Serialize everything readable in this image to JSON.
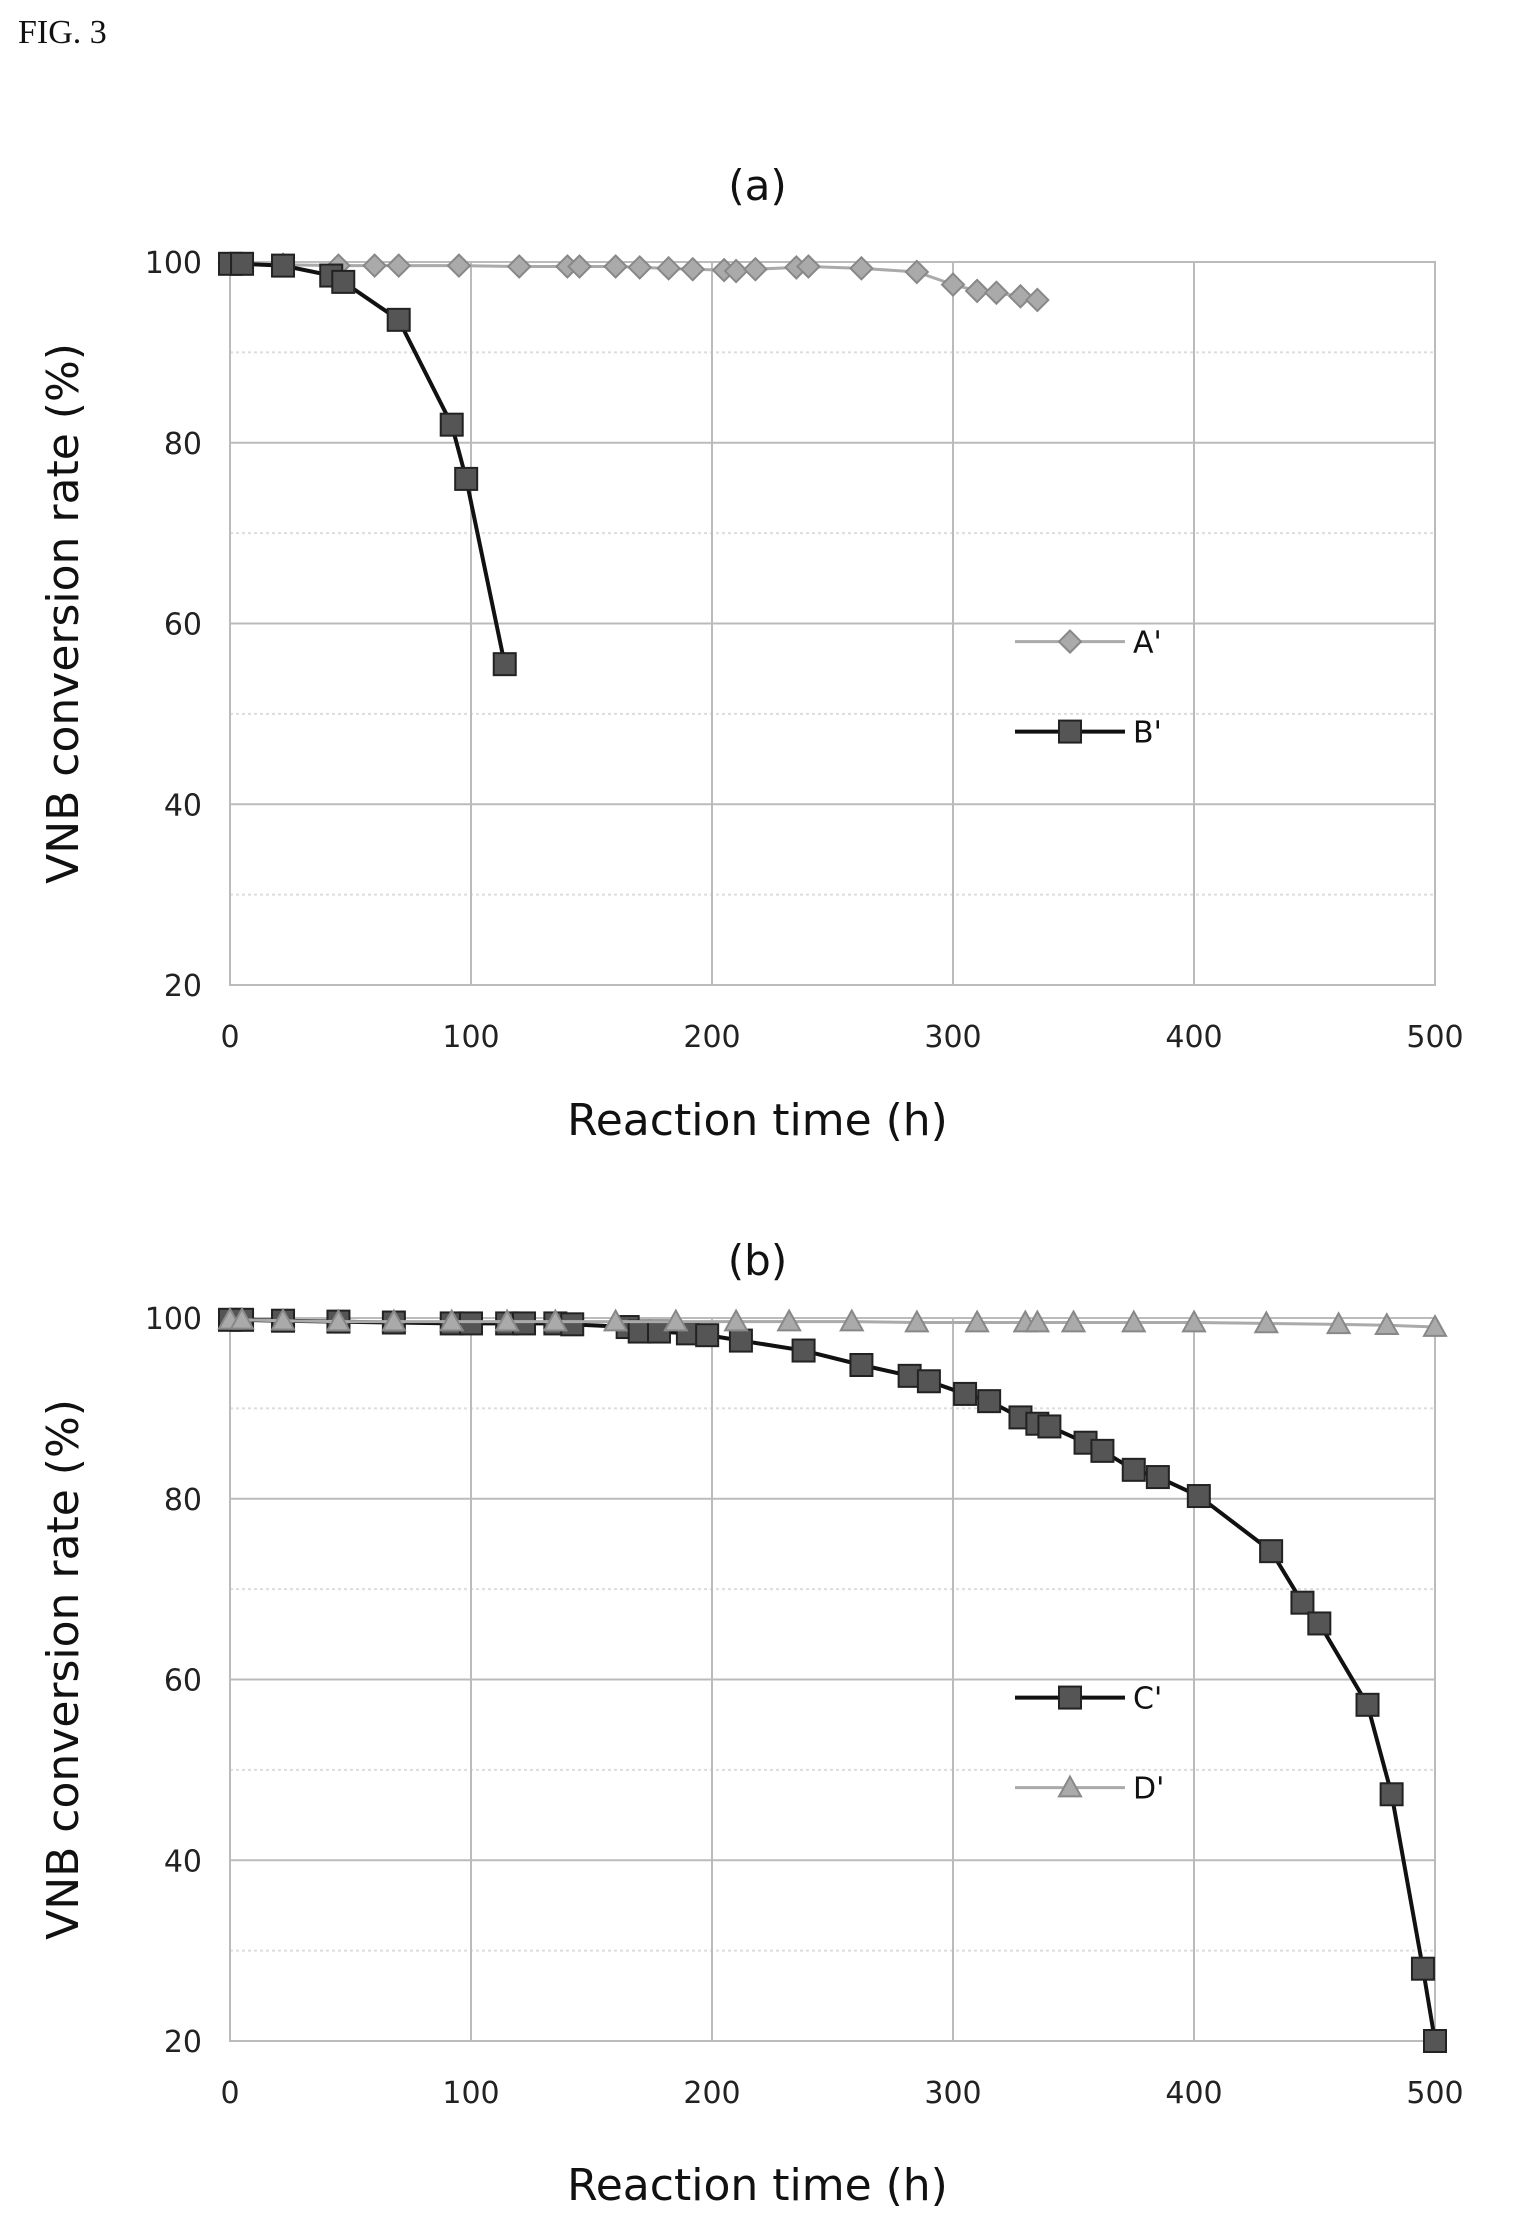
{
  "figure_label": "FIG. 3",
  "chart_data": [
    {
      "type": "line",
      "title": "(a)",
      "xlabel": "Reaction time (h)",
      "ylabel": "VNB conversion rate (%)",
      "xlim": [
        0,
        500
      ],
      "ylim": [
        20,
        100
      ],
      "xticks": [
        0,
        100,
        200,
        300,
        400,
        500
      ],
      "yticks": [
        20,
        40,
        60,
        80,
        100
      ],
      "grid": true,
      "legend_position": "center-right",
      "series": [
        {
          "name": "A'",
          "marker": "diamond",
          "color": "#aaaaaa",
          "x": [
            0,
            5,
            22,
            45,
            60,
            70,
            95,
            120,
            140,
            145,
            160,
            170,
            182,
            192,
            205,
            210,
            218,
            235,
            240,
            262,
            285,
            300,
            310,
            318,
            328,
            335
          ],
          "y": [
            99.8,
            99.8,
            99.7,
            99.6,
            99.6,
            99.6,
            99.6,
            99.5,
            99.5,
            99.5,
            99.5,
            99.4,
            99.3,
            99.2,
            99.1,
            99.0,
            99.2,
            99.4,
            99.5,
            99.3,
            98.9,
            97.5,
            96.8,
            96.6,
            96.2,
            95.8
          ]
        },
        {
          "name": "B'",
          "marker": "square",
          "color": "#555555",
          "x": [
            0,
            5,
            22,
            42,
            47,
            70,
            92,
            98,
            114
          ],
          "y": [
            99.8,
            99.8,
            99.6,
            98.5,
            97.8,
            93.6,
            82.0,
            76.0,
            55.5
          ]
        }
      ]
    },
    {
      "type": "line",
      "title": "(b)",
      "xlabel": "Reaction time (h)",
      "ylabel": "VNB conversion rate (%)",
      "xlim": [
        0,
        500
      ],
      "ylim": [
        20,
        100
      ],
      "xticks": [
        0,
        100,
        200,
        300,
        400,
        500
      ],
      "yticks": [
        20,
        40,
        60,
        80,
        100
      ],
      "grid": true,
      "legend_position": "center-right",
      "series": [
        {
          "name": "C'",
          "marker": "square",
          "color": "#555555",
          "x": [
            0,
            5,
            22,
            45,
            68,
            92,
            100,
            115,
            122,
            135,
            142,
            165,
            170,
            178,
            190,
            198,
            212,
            238,
            262,
            282,
            290,
            305,
            315,
            328,
            335,
            340,
            355,
            362,
            375,
            385,
            402,
            432,
            445,
            452,
            472,
            482,
            495,
            500
          ],
          "y": [
            99.8,
            99.8,
            99.7,
            99.6,
            99.5,
            99.4,
            99.4,
            99.4,
            99.4,
            99.4,
            99.3,
            99.0,
            98.5,
            98.5,
            98.3,
            98.1,
            97.5,
            96.4,
            94.8,
            93.6,
            93.0,
            91.6,
            90.8,
            89.0,
            88.3,
            88.0,
            86.2,
            85.3,
            83.2,
            82.4,
            80.3,
            74.2,
            68.5,
            66.2,
            57.2,
            47.3,
            28.0,
            20.0
          ]
        },
        {
          "name": "D'",
          "marker": "triangle",
          "color": "#aaaaaa",
          "x": [
            0,
            5,
            22,
            45,
            68,
            92,
            115,
            135,
            160,
            185,
            210,
            232,
            258,
            285,
            310,
            330,
            335,
            350,
            375,
            400,
            430,
            460,
            480,
            500
          ],
          "y": [
            99.8,
            99.8,
            99.7,
            99.6,
            99.6,
            99.6,
            99.6,
            99.6,
            99.6,
            99.6,
            99.6,
            99.6,
            99.6,
            99.5,
            99.5,
            99.5,
            99.5,
            99.5,
            99.5,
            99.5,
            99.4,
            99.3,
            99.2,
            99.0
          ]
        }
      ]
    }
  ]
}
